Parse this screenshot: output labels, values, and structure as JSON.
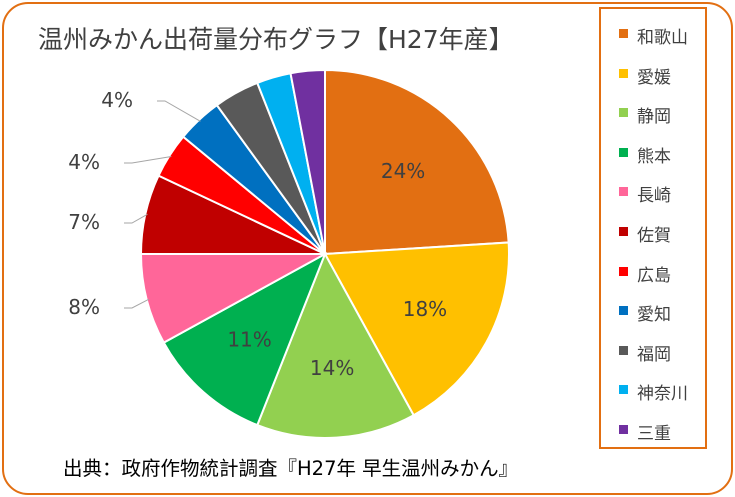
{
  "title": "温州みかん出荷量分布グラフ【H27年産】",
  "source": "出典：政府作物統計調査『H27年 早生温州みかん』",
  "chart_data": {
    "type": "pie",
    "title": "温州みかん出荷量分布グラフ【H27年産】",
    "legend_position": "right",
    "slices": [
      {
        "name": "和歌山",
        "value": 24,
        "label": "24%",
        "color": "#e26f12"
      },
      {
        "name": "愛媛",
        "value": 18,
        "label": "18%",
        "color": "#ffc000"
      },
      {
        "name": "静岡",
        "value": 14,
        "label": "14%",
        "color": "#92d050"
      },
      {
        "name": "熊本",
        "value": 11,
        "label": "11%",
        "color": "#00b050"
      },
      {
        "name": "長崎",
        "value": 8,
        "label": "8%",
        "color": "#ff6699"
      },
      {
        "name": "佐賀",
        "value": 7,
        "label": "7%",
        "color": "#c00000"
      },
      {
        "name": "広島",
        "value": 4,
        "label": "4%",
        "color": "#ff0000"
      },
      {
        "name": "愛知",
        "value": 4,
        "label": "4%",
        "color": "#0070c0"
      },
      {
        "name": "福岡",
        "value": 4,
        "label": "",
        "color": "#595959"
      },
      {
        "name": "神奈川",
        "value": 3,
        "label": "",
        "color": "#00b0f0"
      },
      {
        "name": "三重",
        "value": 3,
        "label": "",
        "color": "#7030a0"
      }
    ]
  }
}
